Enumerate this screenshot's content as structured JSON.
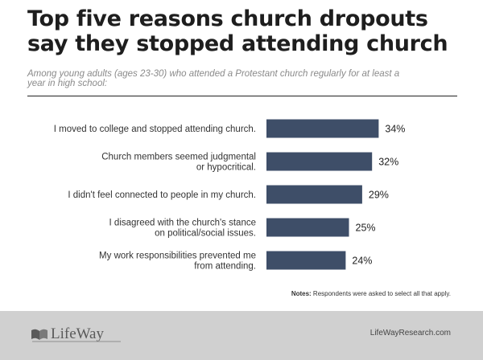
{
  "header": {
    "title": "Top five reasons church dropouts say they stopped attending church",
    "subtitle": "Among young adults (ages 23-30) who attended a Protestant church regularly for at least a year in high school:"
  },
  "chart_data": {
    "type": "bar",
    "orientation": "horizontal",
    "categories": [
      [
        "I moved to college and stopped attending church."
      ],
      [
        "Church members seemed judgmental",
        "or hypocritical."
      ],
      [
        "I didn't feel connected to people in my church."
      ],
      [
        "I disagreed with the church's stance",
        "on political/social issues."
      ],
      [
        "My work responsibilities prevented me",
        "from attending."
      ]
    ],
    "values": [
      34,
      32,
      29,
      25,
      24
    ],
    "value_labels": [
      "34%",
      "32%",
      "29%",
      "25%",
      "24%"
    ],
    "bar_color": "#3e4e68",
    "title": "",
    "xlabel": "",
    "ylabel": "",
    "grid": false
  },
  "notes": {
    "label": "Notes:",
    "text": " Respondents were asked to select all that apply."
  },
  "footer": {
    "brand": "LifeWay",
    "site": "LifeWayResearch.com",
    "background": "#d0d0d0"
  }
}
